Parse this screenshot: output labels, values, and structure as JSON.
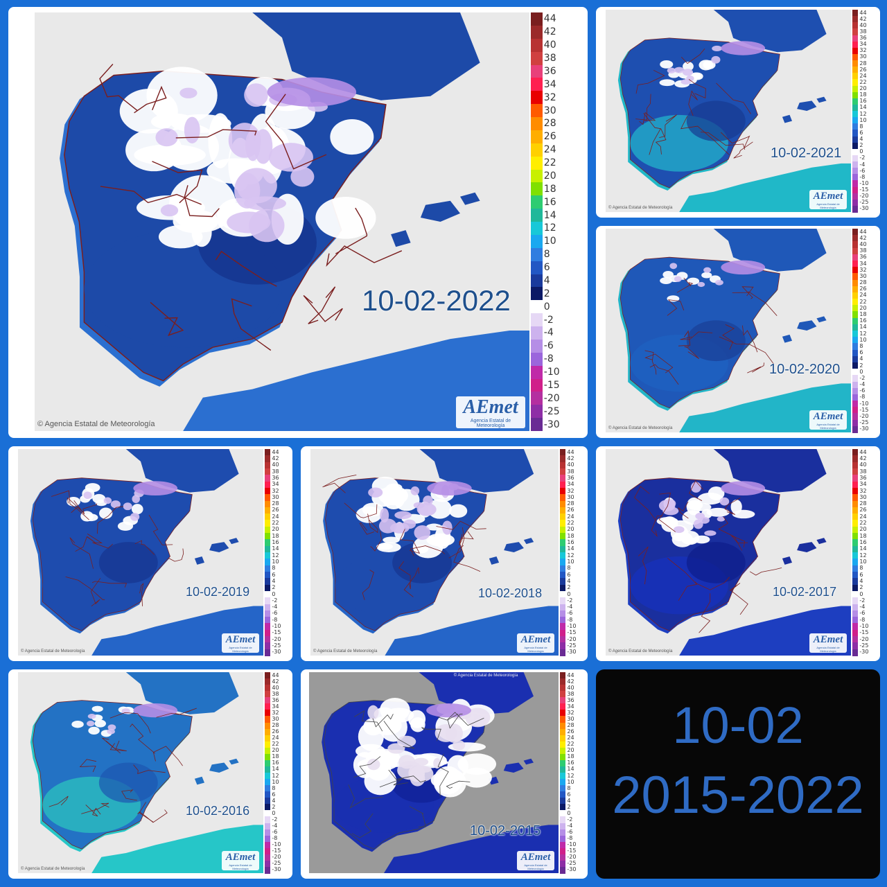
{
  "panels": [
    {
      "id": "p2022",
      "label": "10-02-2022",
      "credit": "Agencia Estatal de Meteorología",
      "logo": "AEmet",
      "logo_sub": "Agencia Estatal de Meteorología"
    },
    {
      "id": "p2021",
      "label": "10-02-2021",
      "credit": "Agencia Estatal de Meteorología",
      "logo": "AEmet",
      "logo_sub": "Agencia Estatal de Meteorología"
    },
    {
      "id": "p2020",
      "label": "10-02-2020",
      "credit": "Agencia Estatal de Meteorología",
      "logo": "AEmet",
      "logo_sub": "Agencia Estatal de Meteorología"
    },
    {
      "id": "p2019",
      "label": "10-02-2019",
      "credit": "Agencia Estatal de Meteorología",
      "logo": "AEmet",
      "logo_sub": "Agencia Estatal de Meteorología"
    },
    {
      "id": "p2018",
      "label": "10-02-2018",
      "credit": "Agencia Estatal de Meteorología",
      "logo": "AEmet",
      "logo_sub": "Agencia Estatal de Meteorología"
    },
    {
      "id": "p2017",
      "label": "10-02-2017",
      "credit": "Agencia Estatal de Meteorología",
      "logo": "AEmet",
      "logo_sub": "Agencia Estatal de Meteorología"
    },
    {
      "id": "p2016",
      "label": "10-02-2016",
      "credit": "Agencia Estatal de Meteorología",
      "logo": "AEmet",
      "logo_sub": "Agencia Estatal de Meteorología"
    },
    {
      "id": "p2015",
      "label": "10-02-2015",
      "credit": "Agencia Estatal de Meteorología",
      "logo": "AEmet",
      "logo_sub": "Agencia Estatal de Meteorología"
    }
  ],
  "legend": {
    "values": [
      "44",
      "42",
      "40",
      "38",
      "36",
      "34",
      "32",
      "30",
      "28",
      "26",
      "24",
      "22",
      "20",
      "18",
      "16",
      "14",
      "12",
      "10",
      "8",
      "6",
      "4",
      "2",
      "0",
      "-2",
      "-4",
      "-6",
      "-8",
      "-10",
      "-15",
      "-20",
      "-25",
      "-30"
    ],
    "colors": [
      "#7a1f1f",
      "#9b2a2a",
      "#b83232",
      "#d04040",
      "#e8407a",
      "#ff2050",
      "#e80000",
      "#ff5a00",
      "#ff8c00",
      "#ffae00",
      "#ffd000",
      "#ffee00",
      "#c8f000",
      "#80e000",
      "#2ecc71",
      "#20b89a",
      "#18c8d8",
      "#1aa8f0",
      "#2f7de0",
      "#2257c4",
      "#1a3a9c",
      "#0c1a66",
      "#ffffff",
      "#e6d8f5",
      "#cdb2ee",
      "#b58ee6",
      "#9b66dc",
      "#c02aa8",
      "#d01f8a",
      "#b42fa0",
      "#8e2ea6",
      "#6a2b94"
    ]
  },
  "summary": {
    "line1": "10-02",
    "line2": "2015-2022"
  },
  "colors": {
    "sea": "#e9e9e9",
    "land_base": "#1f4fa8",
    "snow": "#ffffff",
    "lilac": "#d9c6f2",
    "border": "#7a1e1e",
    "collage_bg": "#1a6fd6",
    "summary_bg": "#070707",
    "summary_text": "#2f6bc4"
  }
}
